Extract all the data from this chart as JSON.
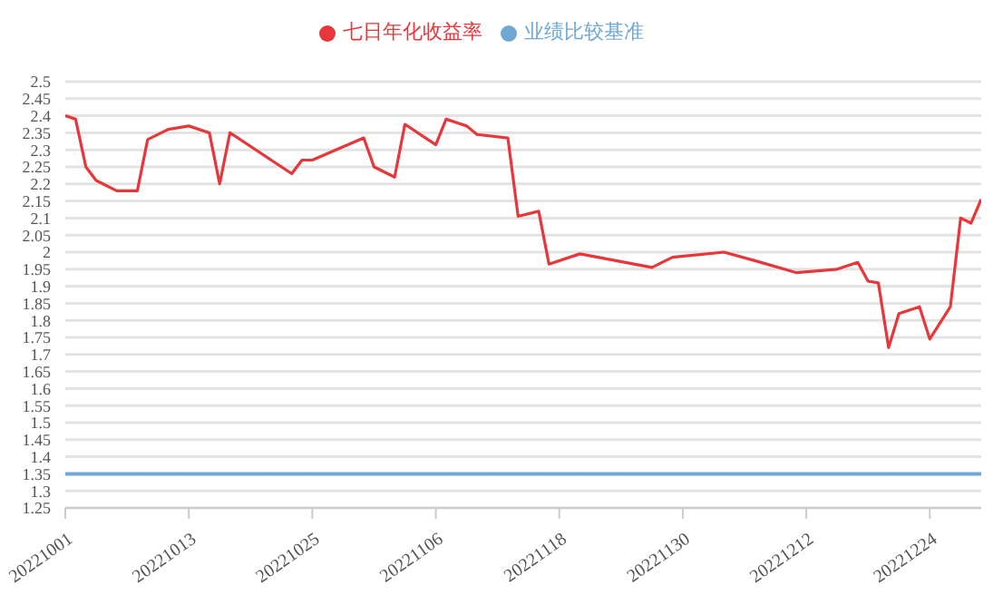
{
  "chart_data": {
    "type": "line",
    "series": [
      {
        "name": "七日年化收益率",
        "color": "#e8373a",
        "x": [
          "2022-10-01",
          "2022-10-02",
          "2022-10-03",
          "2022-10-04",
          "2022-10-06",
          "2022-10-08",
          "2022-10-09",
          "2022-10-11",
          "2022-10-13",
          "2022-10-15",
          "2022-10-16",
          "2022-10-17",
          "2022-10-23",
          "2022-10-24",
          "2022-10-25",
          "2022-10-30",
          "2022-10-31",
          "2022-11-02",
          "2022-11-03",
          "2022-11-06",
          "2022-11-07",
          "2022-11-09",
          "2022-11-10",
          "2022-11-13",
          "2022-11-14",
          "2022-11-16",
          "2022-11-17",
          "2022-11-20",
          "2022-11-27",
          "2022-11-29",
          "2022-12-04",
          "2022-12-07",
          "2022-12-11",
          "2022-12-15",
          "2022-12-17",
          "2022-12-18",
          "2022-12-19",
          "2022-12-20",
          "2022-12-21",
          "2022-12-23",
          "2022-12-24",
          "2022-12-26",
          "2022-12-27",
          "2022-12-28",
          "2022-12-29"
        ],
        "values": [
          2.4,
          2.39,
          2.25,
          2.21,
          2.18,
          2.18,
          2.33,
          2.36,
          2.37,
          2.35,
          2.2,
          2.35,
          2.23,
          2.27,
          2.27,
          2.335,
          2.25,
          2.22,
          2.375,
          2.315,
          2.39,
          2.37,
          2.345,
          2.335,
          2.105,
          2.12,
          1.965,
          1.995,
          1.955,
          1.985,
          2.0,
          1.975,
          1.94,
          1.95,
          1.97,
          1.915,
          1.91,
          1.72,
          1.82,
          1.84,
          1.745,
          1.84,
          2.1,
          2.085,
          2.155
        ]
      },
      {
        "name": "业绩比较基准",
        "color": "#6fa8d4",
        "x": [
          "2022-10-01",
          "2022-12-29"
        ],
        "values": [
          1.35,
          1.35
        ]
      }
    ],
    "xlim": [
      "2022-10-01",
      "2022-12-29"
    ],
    "xticks": [
      {
        "value": "2022-10-01",
        "label": "20221001"
      },
      {
        "value": "2022-10-13",
        "label": "20221013"
      },
      {
        "value": "2022-10-25",
        "label": "20221025"
      },
      {
        "value": "2022-11-06",
        "label": "20221106"
      },
      {
        "value": "2022-11-18",
        "label": "20221118"
      },
      {
        "value": "2022-11-30",
        "label": "20221130"
      },
      {
        "value": "2022-12-12",
        "label": "20221212"
      },
      {
        "value": "2022-12-24",
        "label": "20221224"
      }
    ],
    "ylim": [
      1.25,
      2.5
    ],
    "yticks": [
      1.25,
      1.3,
      1.35,
      1.4,
      1.45,
      1.5,
      1.55,
      1.6,
      1.65,
      1.7,
      1.75,
      1.8,
      1.85,
      1.9,
      1.95,
      2,
      2.05,
      2.1,
      2.15,
      2.2,
      2.25,
      2.3,
      2.35,
      2.4,
      2.45,
      2.5
    ],
    "grid": "y",
    "legend": "top"
  }
}
